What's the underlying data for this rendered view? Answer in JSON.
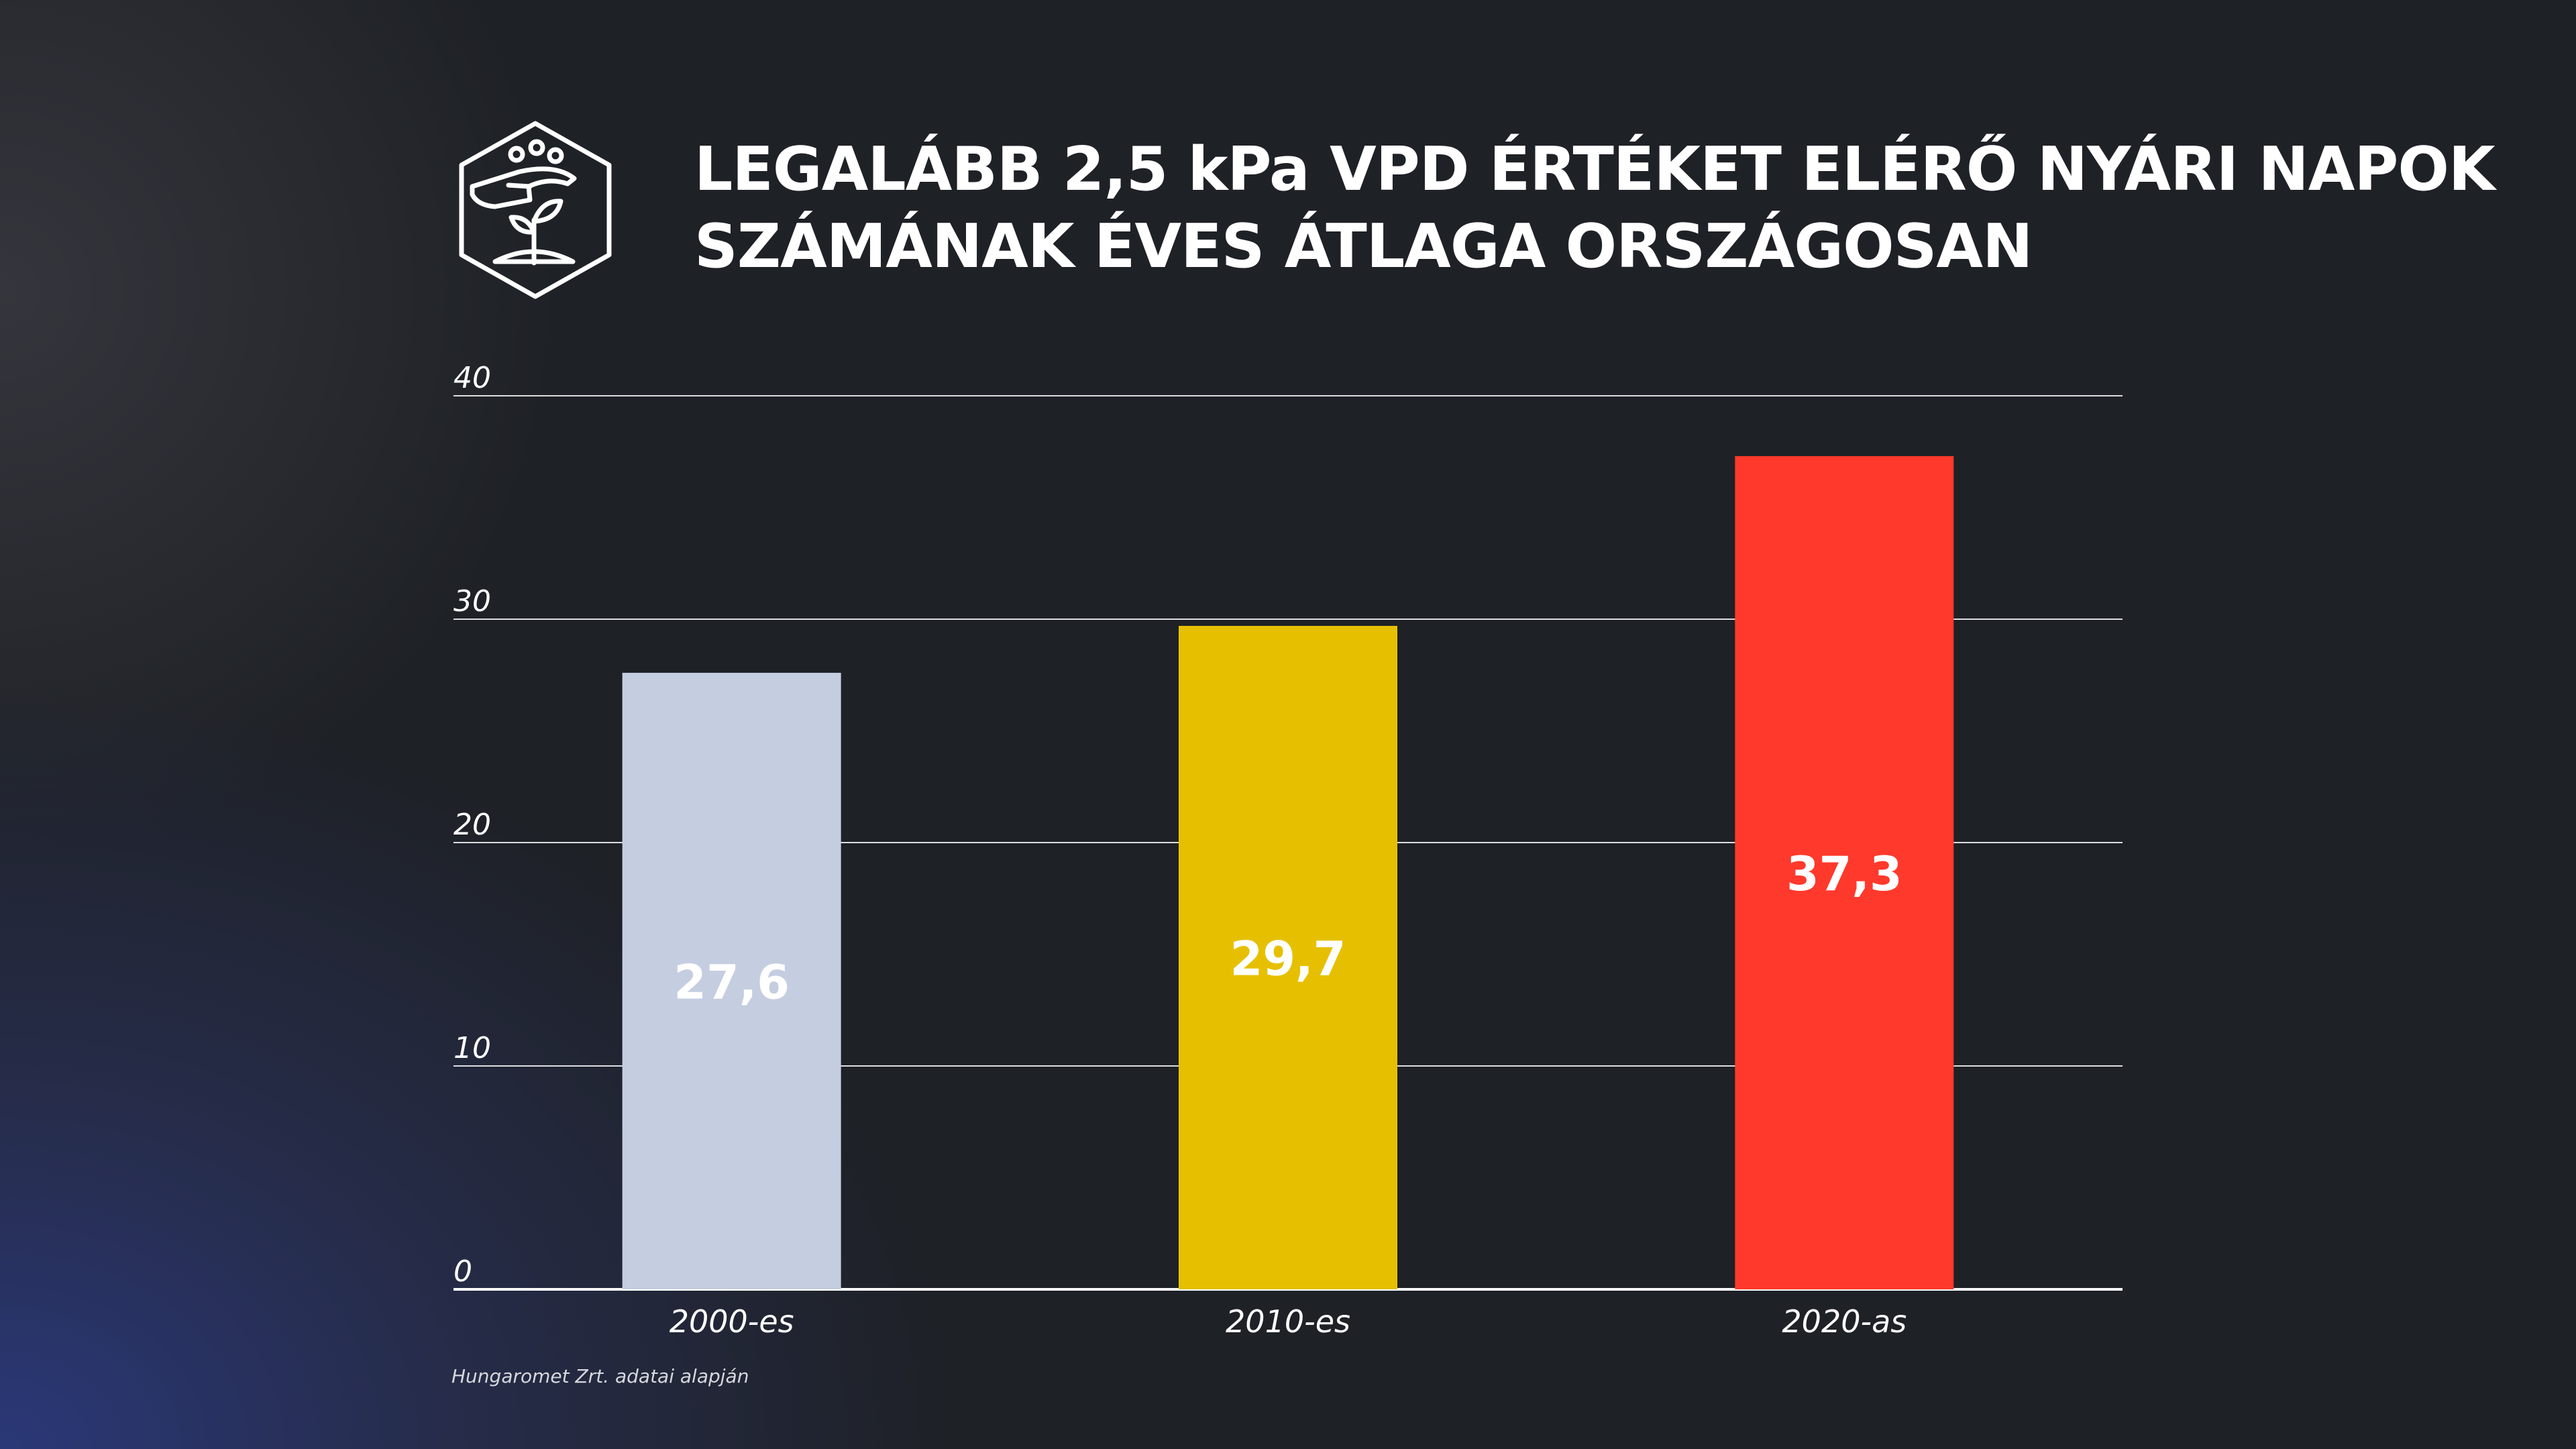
{
  "title": {
    "line1": "LEGALÁBB 2,5 kPa VPD ÉRTÉKET ELÉRŐ NYÁRI NAPOK",
    "line2": "SZÁMÁNAK ÉVES ÁTLAGA ORSZÁGOSAN"
  },
  "logo_icon": "hand-sowing-seeds-plant-icon",
  "chart_data": {
    "type": "bar",
    "categories": [
      "2000-es",
      "2010-es",
      "2020-as"
    ],
    "values": [
      27.6,
      29.7,
      37.3
    ],
    "value_labels": [
      "27,6",
      "29,7",
      "37,3"
    ],
    "colors": [
      "#c5cde0",
      "#e6c000",
      "#ff392b"
    ],
    "ylim": [
      0,
      40
    ],
    "yticks": [
      "0",
      "10",
      "20",
      "30",
      "40"
    ],
    "grid": true,
    "legend": "none",
    "xlabel": "",
    "ylabel": ""
  },
  "source": "Hungaromet Zrt. adatai alapján"
}
